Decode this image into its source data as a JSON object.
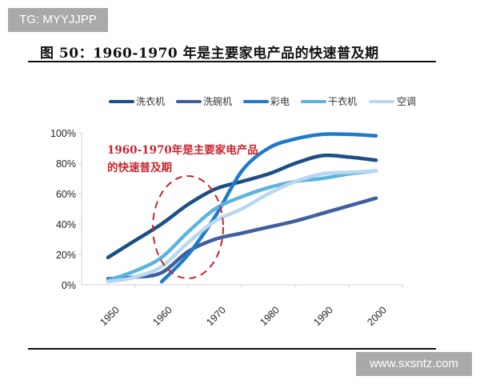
{
  "watermarks": {
    "top_left": "TG: MYYJJPP",
    "bottom_right": "www.sxsntz.com"
  },
  "figure": {
    "title": "图 50：1960-1970 年是主要家电产品的快速普及期"
  },
  "chart_data": {
    "type": "line",
    "title": "1960-1970 年是主要家电产品的快速普及期",
    "xlabel": "",
    "ylabel": "",
    "x": [
      1950,
      1955,
      1960,
      1965,
      1970,
      1975,
      1980,
      1985,
      1990,
      1995,
      2000
    ],
    "categories": [
      "1950",
      "1960",
      "1970",
      "1980",
      "1990",
      "2000"
    ],
    "ylim": [
      0,
      100
    ],
    "yticks": [
      "0%",
      "20%",
      "40%",
      "60%",
      "80%",
      "100%"
    ],
    "legend_position": "top",
    "grid": false,
    "annotation": {
      "line1": "1960-1970年是主要家电产品",
      "line2": "的快速普及期",
      "shape": "dashed red ellipse around 1960-1970"
    },
    "series": [
      {
        "name": "洗衣机",
        "color": "#1b4f86",
        "values": [
          18,
          29,
          40,
          53,
          63,
          68,
          73,
          80,
          85,
          84,
          82
        ]
      },
      {
        "name": "洗碗机",
        "color": "#3f5f9e",
        "values": [
          4,
          5,
          8,
          22,
          30,
          34,
          38,
          42,
          47,
          52,
          57
        ]
      },
      {
        "name": "彩电",
        "color": "#1f7acc",
        "values": [
          null,
          null,
          2,
          20,
          45,
          75,
          90,
          96,
          99,
          99,
          98
        ]
      },
      {
        "name": "干衣机",
        "color": "#5db3e0",
        "values": [
          3,
          9,
          18,
          35,
          50,
          58,
          64,
          68,
          70,
          73,
          75
        ]
      },
      {
        "name": "空调",
        "color": "#b8d7f0",
        "values": [
          2,
          5,
          12,
          28,
          42,
          50,
          60,
          68,
          73,
          74,
          75
        ]
      }
    ]
  }
}
